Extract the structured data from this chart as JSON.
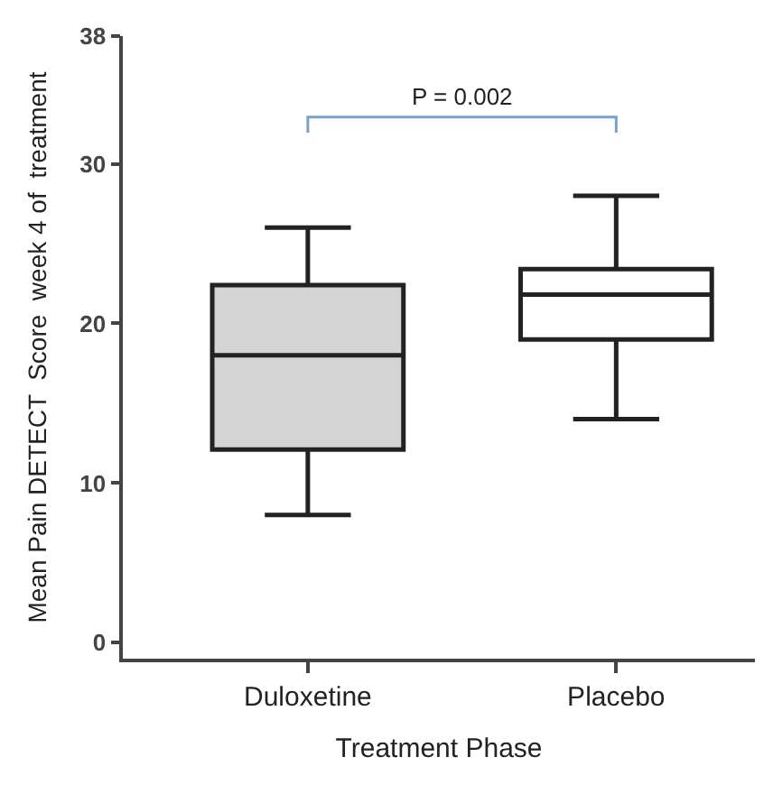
{
  "chart_data": {
    "type": "box",
    "categories": [
      "Duloxetine",
      "Placebo"
    ],
    "boxes": [
      {
        "low": 8,
        "q1": 12.1,
        "median": 18,
        "q3": 22.4,
        "high": 26
      },
      {
        "low": 14,
        "q1": 19,
        "median": 21.8,
        "q3": 23.4,
        "high": 28
      }
    ],
    "colors": [
      "#d4d4d4",
      "#ffffff"
    ],
    "xlabel": "Treatment Phase",
    "ylabel": "Mean Pain DETECT  Score  week 4 of  treatment",
    "ylim": [
      -1,
      38
    ],
    "yticks": [
      0,
      10,
      20,
      30,
      38
    ],
    "legend": false,
    "annotations": [
      "P = 0.002"
    ]
  }
}
